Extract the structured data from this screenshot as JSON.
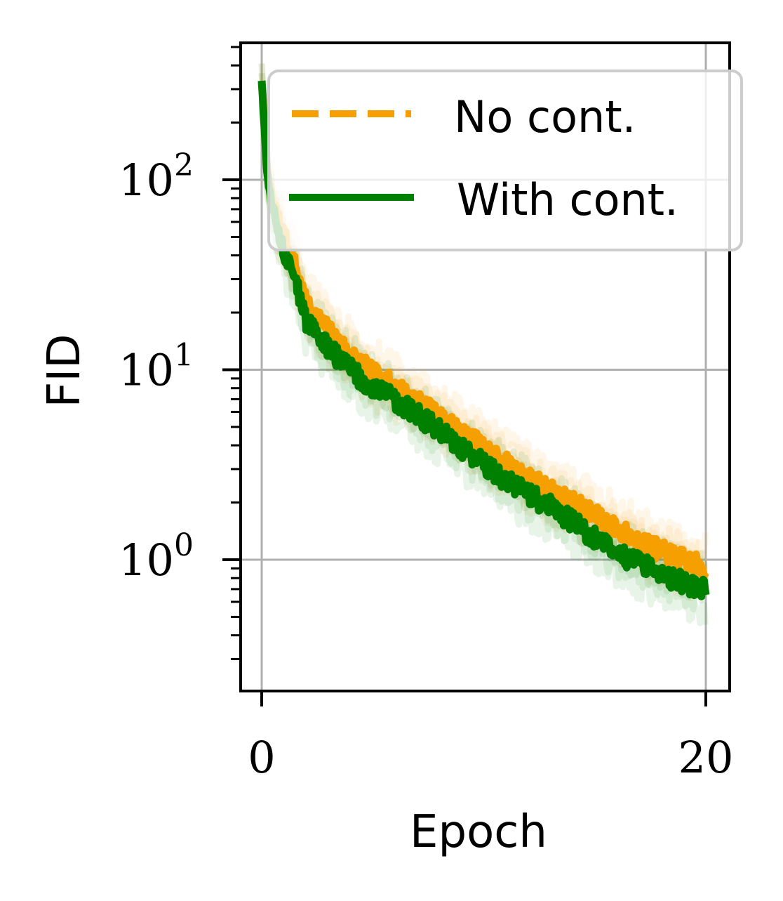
{
  "chart_data": {
    "type": "line",
    "title": "",
    "xlabel": "Epoch",
    "ylabel": "FID",
    "xlim": [
      -1,
      21
    ],
    "ylim": [
      0.2,
      500
    ],
    "yscale": "log",
    "x_ticks": [
      {
        "value": 0,
        "label": "0"
      },
      {
        "value": 20,
        "label": "20"
      }
    ],
    "y_ticks": [
      {
        "value": 1,
        "base": "10",
        "exp": "0"
      },
      {
        "value": 10,
        "base": "10",
        "exp": "1"
      },
      {
        "value": 100,
        "base": "10",
        "exp": "2"
      }
    ],
    "grid": true,
    "legend_position": "top-right",
    "series": [
      {
        "name": "No cont.",
        "color": "#f5a000",
        "line_style": "dashed",
        "x": [
          0,
          0.25,
          0.5,
          1,
          1.5,
          2,
          3,
          4,
          5,
          6,
          7,
          8,
          9,
          10,
          11,
          12,
          13,
          14,
          15,
          16,
          17,
          18,
          19,
          20
        ],
        "values": [
          330,
          110,
          75,
          50,
          35,
          22,
          16,
          12,
          9.5,
          8.2,
          6.8,
          5.6,
          4.6,
          3.9,
          3.2,
          2.7,
          2.3,
          2.0,
          1.7,
          1.45,
          1.25,
          1.1,
          1.0,
          0.9
        ]
      },
      {
        "name": "With cont.",
        "color": "#008000",
        "line_style": "solid",
        "x": [
          0,
          0.25,
          0.5,
          1,
          1.5,
          2,
          3,
          4,
          5,
          6,
          7,
          8,
          9,
          10,
          11,
          12,
          13,
          14,
          15,
          16,
          17,
          18,
          19,
          20
        ],
        "values": [
          330,
          105,
          68,
          42,
          30,
          18,
          13,
          10,
          8,
          7,
          5.8,
          4.8,
          3.9,
          3.2,
          2.6,
          2.2,
          1.9,
          1.6,
          1.3,
          1.1,
          0.95,
          0.85,
          0.75,
          0.7
        ]
      }
    ]
  }
}
